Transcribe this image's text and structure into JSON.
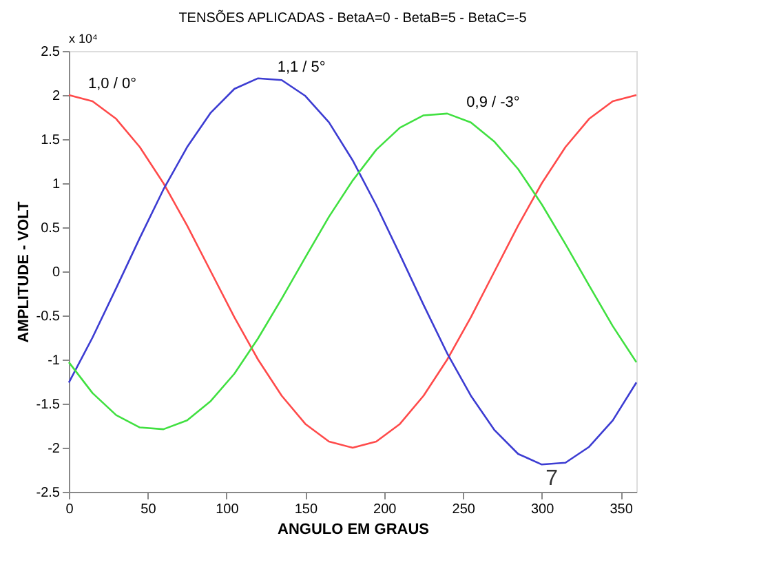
{
  "chart_data": {
    "type": "line",
    "title": "TENSÕES APLICADAS - BetaA=0  -  BetaB=5  -  BetaC=-5",
    "xlabel": "ANGULO EM GRAUS",
    "ylabel": "AMPLITUDE - VOLT",
    "x": [
      0,
      15,
      30,
      45,
      60,
      75,
      90,
      105,
      120,
      135,
      150,
      165,
      180,
      195,
      210,
      225,
      240,
      255,
      270,
      285,
      300,
      315,
      330,
      345,
      360
    ],
    "series": [
      {
        "name": "1,0 / 0°",
        "color": "#ff4a4a",
        "values": [
          2,
          1.93,
          1.73,
          1.41,
          1,
          0.52,
          0,
          -0.52,
          -1,
          -1.41,
          -1.73,
          -1.93,
          -2,
          -1.93,
          -1.73,
          -1.41,
          -1,
          -0.52,
          0,
          0.52,
          1,
          1.41,
          1.73,
          1.93,
          2
        ]
      },
      {
        "name": "1,1 / 5°",
        "color": "#3c3cd2",
        "values": [
          -1.26,
          -0.75,
          -0.19,
          0.38,
          0.93,
          1.41,
          1.8,
          2.07,
          2.19,
          2.17,
          1.99,
          1.69,
          1.26,
          0.75,
          0.19,
          -0.38,
          -0.93,
          -1.41,
          -1.8,
          -2.07,
          -2.19,
          -2.17,
          -1.99,
          -1.69,
          -1.26
        ]
      },
      {
        "name": "0,9 / -3°",
        "color": "#40e040",
        "values": [
          -1.03,
          -1.38,
          -1.63,
          -1.77,
          -1.79,
          -1.69,
          -1.47,
          -1.16,
          -0.76,
          -0.31,
          0.16,
          0.62,
          1.03,
          1.38,
          1.63,
          1.77,
          1.79,
          1.69,
          1.47,
          1.16,
          0.76,
          0.31,
          -0.16,
          -0.62,
          -1.03
        ]
      }
    ],
    "xlim": [
      0,
      360
    ],
    "xticks": [
      0,
      50,
      100,
      150,
      200,
      250,
      300,
      350
    ],
    "ylim": [
      -2.5,
      2.5
    ],
    "yticks": [
      -2.5,
      -2,
      -1.5,
      -1,
      -0.5,
      0,
      0.5,
      1,
      1.5,
      2,
      2.5
    ],
    "annotations": [
      "x 10⁴",
      "7"
    ],
    "grid": false,
    "legend": false,
    "marker": "none",
    "line_style": "solid"
  }
}
